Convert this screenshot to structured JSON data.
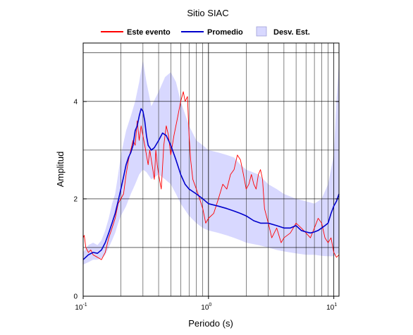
{
  "chart_data": {
    "type": "line",
    "title": "Sitio SIAC",
    "xlabel": "Periodo (s)",
    "ylabel": "Amplitud",
    "xscale": "log",
    "xlim": [
      0.1,
      11
    ],
    "ylim": [
      0,
      5.2
    ],
    "x_tick_labels": [
      {
        "base": "10",
        "exp": "-1",
        "value": 0.1
      },
      {
        "base": "10",
        "exp": "0",
        "value": 1
      },
      {
        "base": "10",
        "exp": "1",
        "value": 10
      }
    ],
    "y_ticks": [
      0,
      2,
      4
    ],
    "grid": true,
    "legend_position": "top",
    "legend": [
      {
        "label": "Este evento",
        "kind": "line",
        "color": "#ff0000"
      },
      {
        "label": "Promedio",
        "kind": "line",
        "color": "#0000cc"
      },
      {
        "label": "Desv. Est.",
        "kind": "band",
        "color": "#d8d8ff"
      }
    ],
    "series": [
      {
        "name": "Este evento",
        "color": "#ff0000",
        "x": [
          0.1,
          0.102,
          0.105,
          0.11,
          0.115,
          0.12,
          0.13,
          0.14,
          0.15,
          0.16,
          0.17,
          0.18,
          0.19,
          0.2,
          0.21,
          0.22,
          0.23,
          0.24,
          0.25,
          0.26,
          0.27,
          0.28,
          0.29,
          0.3,
          0.31,
          0.32,
          0.33,
          0.34,
          0.35,
          0.36,
          0.37,
          0.38,
          0.39,
          0.4,
          0.42,
          0.44,
          0.46,
          0.48,
          0.5,
          0.53,
          0.56,
          0.6,
          0.63,
          0.65,
          0.68,
          0.7,
          0.72,
          0.75,
          0.8,
          0.85,
          0.9,
          0.95,
          1.0,
          1.1,
          1.2,
          1.3,
          1.4,
          1.5,
          1.6,
          1.7,
          1.8,
          1.9,
          2.0,
          2.1,
          2.2,
          2.3,
          2.4,
          2.5,
          2.6,
          2.7,
          2.8,
          3.0,
          3.2,
          3.5,
          3.8,
          4.0,
          4.5,
          5.0,
          5.5,
          6.0,
          6.5,
          7.0,
          7.5,
          8.0,
          8.5,
          9.0,
          9.5,
          10.0,
          10.5,
          11.0
        ],
        "values": [
          1.2,
          1.25,
          1.0,
          0.9,
          0.95,
          0.85,
          0.8,
          0.75,
          0.9,
          1.2,
          1.4,
          1.6,
          1.9,
          2.0,
          2.1,
          2.5,
          2.8,
          3.0,
          3.2,
          3.1,
          3.6,
          3.2,
          3.5,
          3.3,
          3.1,
          2.9,
          2.7,
          3.0,
          2.8,
          2.6,
          2.4,
          3.0,
          2.7,
          2.5,
          2.2,
          3.1,
          3.5,
          3.3,
          2.9,
          3.3,
          3.6,
          4.0,
          4.2,
          4.0,
          4.1,
          3.3,
          2.8,
          2.4,
          2.2,
          2.0,
          1.8,
          1.5,
          1.6,
          1.7,
          2.0,
          2.3,
          2.2,
          2.5,
          2.6,
          2.9,
          2.8,
          2.5,
          2.2,
          2.3,
          2.5,
          2.3,
          2.2,
          2.5,
          2.6,
          2.4,
          1.8,
          1.5,
          1.2,
          1.4,
          1.1,
          1.2,
          1.3,
          1.5,
          1.4,
          1.3,
          1.2,
          1.4,
          1.6,
          1.5,
          1.2,
          1.1,
          1.2,
          0.9,
          0.8,
          0.85
        ]
      },
      {
        "name": "Promedio",
        "color": "#0000cc",
        "x": [
          0.1,
          0.11,
          0.12,
          0.13,
          0.14,
          0.15,
          0.16,
          0.17,
          0.18,
          0.19,
          0.2,
          0.21,
          0.22,
          0.23,
          0.24,
          0.25,
          0.26,
          0.27,
          0.28,
          0.29,
          0.3,
          0.31,
          0.32,
          0.33,
          0.34,
          0.35,
          0.37,
          0.4,
          0.43,
          0.46,
          0.5,
          0.55,
          0.6,
          0.65,
          0.7,
          0.8,
          0.9,
          1.0,
          1.2,
          1.4,
          1.6,
          1.8,
          2.0,
          2.3,
          2.6,
          3.0,
          3.5,
          4.0,
          4.5,
          5.0,
          5.5,
          6.0,
          6.5,
          7.0,
          7.5,
          8.0,
          8.5,
          9.0,
          9.5,
          10.0,
          10.5,
          11.0
        ],
        "values": [
          0.75,
          0.85,
          0.9,
          0.88,
          0.95,
          1.1,
          1.3,
          1.5,
          1.7,
          1.95,
          2.2,
          2.45,
          2.7,
          2.85,
          2.95,
          3.1,
          3.4,
          3.5,
          3.7,
          3.85,
          3.8,
          3.6,
          3.3,
          3.1,
          3.05,
          3.0,
          3.05,
          3.2,
          3.35,
          3.3,
          3.1,
          2.8,
          2.5,
          2.3,
          2.2,
          2.1,
          2.0,
          1.9,
          1.85,
          1.8,
          1.75,
          1.7,
          1.65,
          1.55,
          1.5,
          1.5,
          1.45,
          1.4,
          1.4,
          1.45,
          1.35,
          1.32,
          1.3,
          1.32,
          1.35,
          1.4,
          1.45,
          1.5,
          1.7,
          1.85,
          1.95,
          2.1
        ]
      },
      {
        "name": "Desv. Est.",
        "kind": "band",
        "color": "#d8d8ff",
        "x": [
          0.1,
          0.11,
          0.12,
          0.13,
          0.14,
          0.15,
          0.16,
          0.17,
          0.18,
          0.19,
          0.2,
          0.22,
          0.24,
          0.26,
          0.28,
          0.3,
          0.32,
          0.35,
          0.4,
          0.45,
          0.5,
          0.55,
          0.6,
          0.7,
          0.8,
          0.9,
          1.0,
          1.2,
          1.4,
          1.6,
          1.8,
          2.0,
          2.5,
          3.0,
          3.5,
          4.0,
          5.0,
          6.0,
          7.0,
          8.0,
          9.0,
          10.0,
          10.5,
          11.0
        ],
        "lower": [
          0.65,
          0.7,
          0.75,
          0.75,
          0.78,
          0.85,
          1.0,
          1.15,
          1.3,
          1.5,
          1.65,
          1.85,
          2.1,
          2.3,
          2.5,
          2.6,
          2.55,
          2.4,
          2.5,
          2.4,
          2.3,
          2.1,
          1.9,
          1.65,
          1.5,
          1.4,
          1.35,
          1.3,
          1.25,
          1.2,
          1.15,
          1.1,
          1.05,
          1.0,
          0.95,
          0.92,
          0.88,
          0.85,
          0.85,
          0.83,
          0.82,
          0.82,
          0.85,
          0.9
        ],
        "upper": [
          0.9,
          1.05,
          1.1,
          1.05,
          1.15,
          1.35,
          1.6,
          1.9,
          2.1,
          2.5,
          2.9,
          3.4,
          3.7,
          4.0,
          4.4,
          4.85,
          4.4,
          3.9,
          4.2,
          4.5,
          4.6,
          4.4,
          4.0,
          3.5,
          3.2,
          3.1,
          3.0,
          2.95,
          2.9,
          2.85,
          2.7,
          2.6,
          2.5,
          2.3,
          2.2,
          2.1,
          2.0,
          1.95,
          1.9,
          2.0,
          2.3,
          2.9,
          4.0,
          4.8
        ]
      }
    ]
  }
}
